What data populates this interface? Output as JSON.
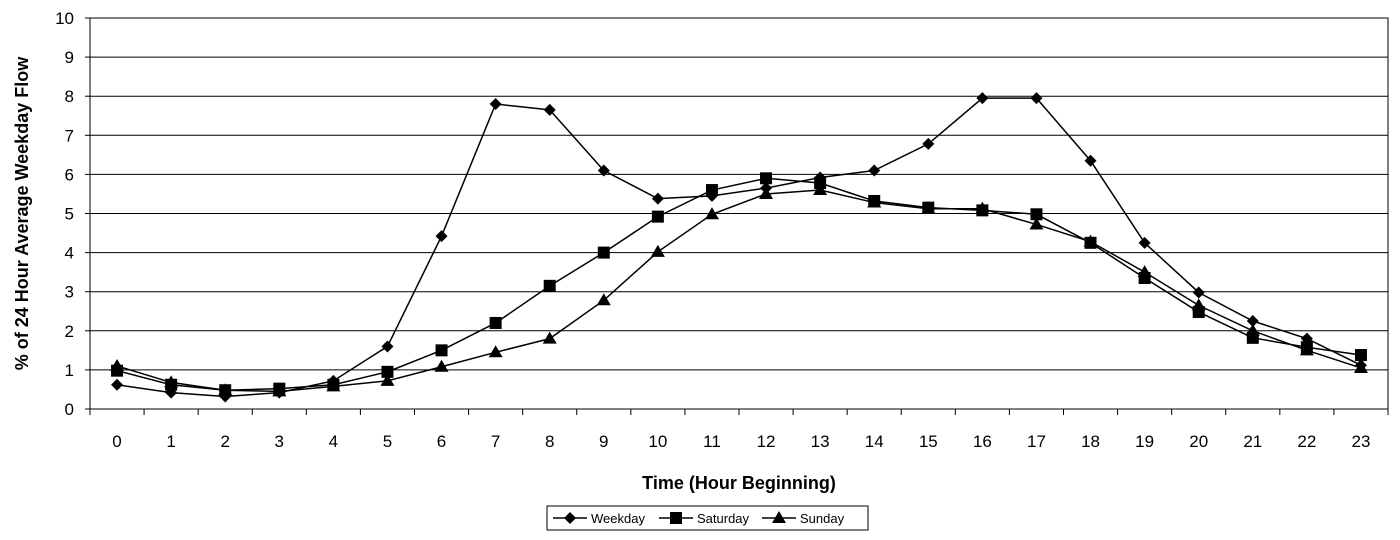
{
  "chart_data": {
    "type": "line",
    "title": "",
    "xlabel": "Time (Hour Beginning)",
    "ylabel": "% of 24 Hour Average Weekday Flow",
    "x": [
      0,
      1,
      2,
      3,
      4,
      5,
      6,
      7,
      8,
      9,
      10,
      11,
      12,
      13,
      14,
      15,
      16,
      17,
      18,
      19,
      20,
      21,
      22,
      23
    ],
    "xticks": [
      "0",
      "1",
      "2",
      "3",
      "4",
      "5",
      "6",
      "7",
      "8",
      "9",
      "10",
      "11",
      "12",
      "13",
      "14",
      "15",
      "16",
      "17",
      "18",
      "19",
      "20",
      "21",
      "22",
      "23"
    ],
    "ylim": [
      0,
      10
    ],
    "yticks": [
      "0",
      "1",
      "2",
      "3",
      "4",
      "5",
      "6",
      "7",
      "8",
      "9",
      "10"
    ],
    "grid": "horizontal",
    "legend_position": "bottom-center",
    "series": [
      {
        "name": "Weekday",
        "marker": "diamond",
        "values": [
          0.62,
          0.42,
          0.32,
          0.42,
          0.72,
          1.6,
          4.42,
          7.8,
          7.65,
          6.1,
          5.38,
          5.45,
          5.65,
          5.92,
          6.1,
          6.78,
          7.95,
          7.95,
          6.35,
          4.25,
          2.98,
          2.25,
          1.8,
          1.12
        ]
      },
      {
        "name": "Saturday",
        "marker": "square",
        "values": [
          0.98,
          0.62,
          0.48,
          0.52,
          0.62,
          0.95,
          1.5,
          2.2,
          3.15,
          4.0,
          4.92,
          5.6,
          5.9,
          5.78,
          5.32,
          5.15,
          5.08,
          4.98,
          4.25,
          3.35,
          2.48,
          1.82,
          1.58,
          1.38
        ]
      },
      {
        "name": "Sunday",
        "marker": "triangle",
        "values": [
          1.1,
          0.68,
          0.48,
          0.45,
          0.58,
          0.72,
          1.08,
          1.45,
          1.8,
          2.78,
          4.02,
          4.98,
          5.5,
          5.6,
          5.28,
          5.12,
          5.12,
          4.72,
          4.28,
          3.5,
          2.65,
          2.0,
          1.5,
          1.05
        ]
      }
    ]
  }
}
